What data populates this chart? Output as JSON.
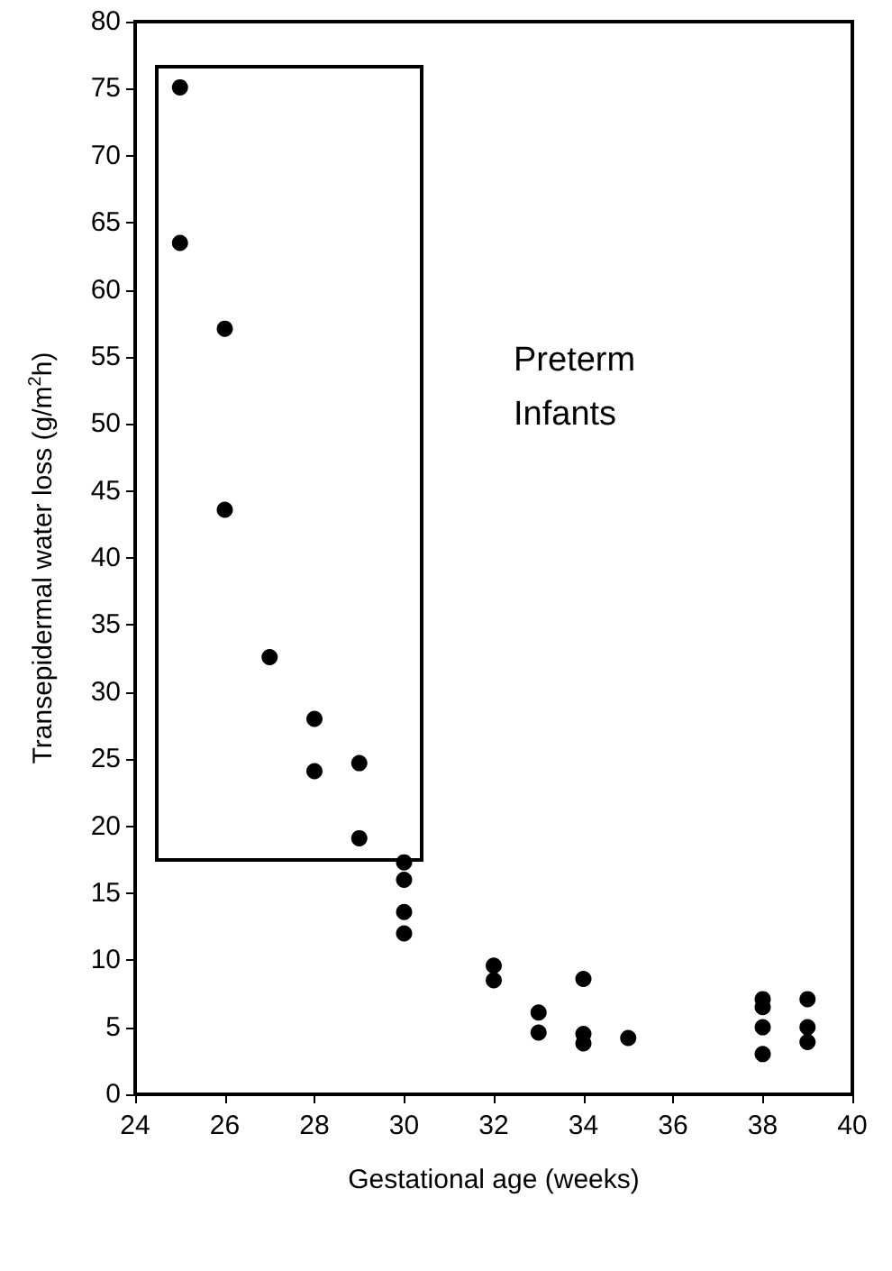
{
  "chart_data": {
    "type": "scatter",
    "xlabel": "Gestational age (weeks)",
    "ylabel": "Transepidermal water loss (g/m$^{2}$h)",
    "annotations": [
      "Preterm Infants"
    ],
    "x": [
      25,
      25,
      26,
      26,
      27,
      28,
      28,
      29,
      29,
      30,
      30,
      30,
      30,
      32,
      32,
      33,
      33,
      34,
      34,
      34,
      35,
      38,
      38,
      38,
      38,
      39,
      39,
      39
    ],
    "series": [
      {
        "color": "#000000",
        "values": [
          75.1,
          63.5,
          57.1,
          43.6,
          32.6,
          28.0,
          24.1,
          24.7,
          19.1,
          17.3,
          16.0,
          13.6,
          12.0,
          9.6,
          8.5,
          6.1,
          4.6,
          8.6,
          4.5,
          3.8,
          4.2,
          7.1,
          6.5,
          5.0,
          3.0,
          7.1,
          5.0,
          3.9
        ]
      }
    ],
    "xlim": [
      24,
      40
    ],
    "xticks": [
      24,
      26,
      28,
      30,
      32,
      34,
      36,
      38,
      40
    ],
    "ylim": [
      0,
      80
    ],
    "yticks": [
      0,
      5,
      10,
      15,
      20,
      25,
      30,
      35,
      40,
      45,
      50,
      55,
      60,
      65,
      70,
      75,
      80
    ],
    "grid": false,
    "marker": "circle"
  }
}
